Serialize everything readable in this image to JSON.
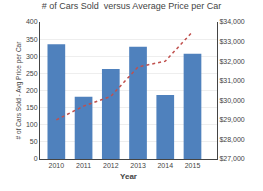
{
  "chart_data": {
    "type": "bar",
    "title": "# of Cars Sold  versus Average Price per Car",
    "x_label": "Year",
    "y_label": "# of Cars Sold - Avg Price per Car",
    "x": [
      2010,
      2011,
      2012,
      2013,
      2014,
      2015
    ],
    "xlim": [
      2009.4,
      2015.9
    ],
    "xticks": [
      2010,
      2011,
      2012,
      2013,
      2014,
      2015
    ],
    "series": [
      {
        "type": "bar",
        "color": "#4F81BD",
        "values": [
          335,
          182,
          263,
          328,
          187,
          307
        ]
      },
      {
        "type": "line",
        "color": "#C0504D",
        "line_style": "dotted",
        "axis": "y2",
        "values": [
          29000,
          29700,
          30200,
          31700,
          32000,
          33500
        ]
      }
    ],
    "ylim": [
      0,
      400
    ],
    "yticks": [
      0,
      50,
      100,
      150,
      200,
      250,
      300,
      350,
      400
    ],
    "y2lim": [
      27000,
      34000
    ],
    "y2ticks": [
      {
        "value": 27000,
        "label": "$27,000"
      },
      {
        "value": 28000,
        "label": "$28,000"
      },
      {
        "value": 29000,
        "label": "$29,000"
      },
      {
        "value": 30000,
        "label": "$30,000"
      },
      {
        "value": 31000,
        "label": "$31,000"
      },
      {
        "value": 32000,
        "label": "$32,000"
      },
      {
        "value": 33000,
        "label": "$33,000"
      },
      {
        "value": 34000,
        "label": "$34,000"
      }
    ],
    "grid": true
  }
}
